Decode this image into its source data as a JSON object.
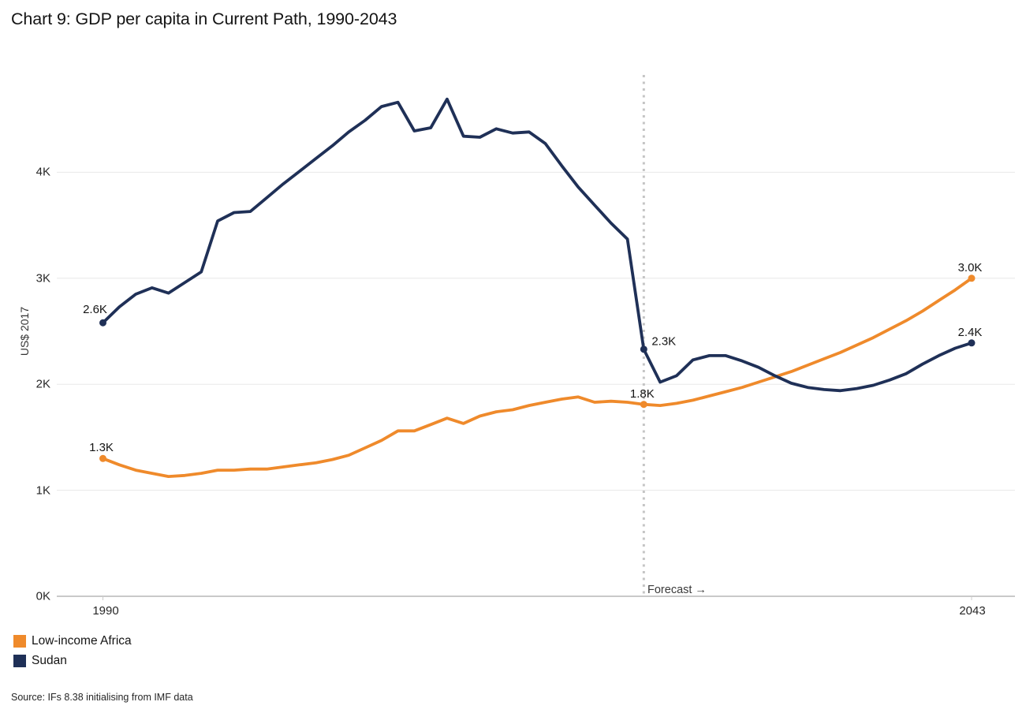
{
  "title": "Chart 9: GDP per capita in Current Path, 1990-2043",
  "y_axis": {
    "label": "US$ 2017",
    "ticks": [
      {
        "label": "0K",
        "value": 0
      },
      {
        "label": "1K",
        "value": 1000
      },
      {
        "label": "2K",
        "value": 2000
      },
      {
        "label": "3K",
        "value": 3000
      },
      {
        "label": "4K",
        "value": 4000
      }
    ]
  },
  "x_axis": {
    "start_label": "1990",
    "end_label": "2043"
  },
  "forecast": {
    "label": "Forecast →",
    "year": 2023
  },
  "legend": [
    {
      "label": "Low-income Africa",
      "color": "#ef8a2b"
    },
    {
      "label": "Sudan",
      "color": "#1f3057"
    }
  ],
  "source": "Source: IFs 8.38 initialising from IMF data",
  "chart_data": {
    "type": "line",
    "title": "Chart 9: GDP per capita in Current Path, 1990-2043",
    "xlabel": "",
    "ylabel": "US$ 2017",
    "xlim": [
      1990,
      2043
    ],
    "ylim": [
      0,
      4600
    ],
    "grid": "horizontal",
    "legend_position": "bottom-left",
    "forecast_start_year": 2023,
    "x": [
      1990,
      1991,
      1992,
      1993,
      1994,
      1995,
      1996,
      1997,
      1998,
      1999,
      2000,
      2001,
      2002,
      2003,
      2004,
      2005,
      2006,
      2007,
      2008,
      2009,
      2010,
      2011,
      2012,
      2013,
      2014,
      2015,
      2016,
      2017,
      2018,
      2019,
      2020,
      2021,
      2022,
      2023,
      2024,
      2025,
      2026,
      2027,
      2028,
      2029,
      2030,
      2031,
      2032,
      2033,
      2034,
      2035,
      2036,
      2037,
      2038,
      2039,
      2040,
      2041,
      2042,
      2043
    ],
    "series": [
      {
        "name": "Low-income Africa",
        "color": "#ef8a2b",
        "values": [
          1300,
          1240,
          1190,
          1160,
          1130,
          1140,
          1160,
          1190,
          1190,
          1200,
          1200,
          1220,
          1240,
          1260,
          1290,
          1330,
          1400,
          1470,
          1560,
          1560,
          1620,
          1680,
          1630,
          1700,
          1740,
          1760,
          1800,
          1830,
          1860,
          1880,
          1830,
          1840,
          1830,
          1810,
          1800,
          1820,
          1850,
          1890,
          1930,
          1970,
          2020,
          2070,
          2120,
          2180,
          2240,
          2300,
          2370,
          2440,
          2520,
          2600,
          2690,
          2790,
          2890,
          3000
        ]
      },
      {
        "name": "Sudan",
        "color": "#1f3057",
        "values": [
          2580,
          2730,
          2850,
          2910,
          2860,
          2960,
          3060,
          3540,
          3620,
          3630,
          3760,
          3890,
          4010,
          4130,
          4250,
          4380,
          4490,
          4620,
          4660,
          4390,
          4420,
          4690,
          4340,
          4330,
          4410,
          4370,
          4380,
          4270,
          4060,
          3860,
          3690,
          3520,
          3370,
          2330,
          2020,
          2080,
          2230,
          2270,
          2270,
          2220,
          2160,
          2080,
          2010,
          1970,
          1950,
          1940,
          1960,
          1990,
          2040,
          2100,
          2190,
          2270,
          2340,
          2390
        ]
      }
    ],
    "point_labels": [
      {
        "series": 1,
        "year": 1990,
        "text": "2.6K",
        "placement": "above-left"
      },
      {
        "series": 0,
        "year": 1990,
        "text": "1.3K",
        "placement": "above"
      },
      {
        "series": 1,
        "year": 2023,
        "text": "2.3K",
        "placement": "right"
      },
      {
        "series": 0,
        "year": 2023,
        "text": "1.8K",
        "placement": "above"
      },
      {
        "series": 0,
        "year": 2043,
        "text": "3.0K",
        "placement": "above"
      },
      {
        "series": 1,
        "year": 2043,
        "text": "2.4K",
        "placement": "above"
      }
    ]
  }
}
